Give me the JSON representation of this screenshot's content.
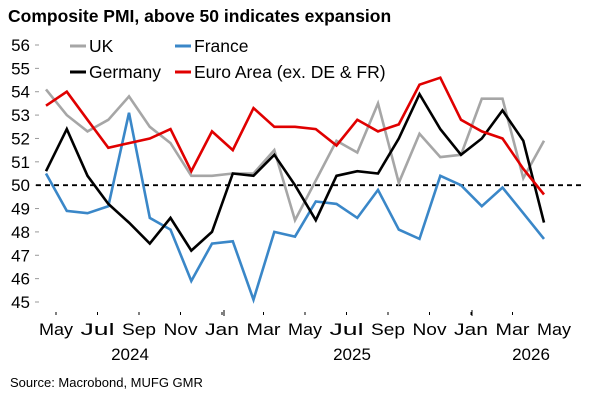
{
  "chart_data": {
    "type": "line",
    "title": "Composite PMI, above 50 indicates expansion",
    "source": "Source: Macrobond, MUFG GMR",
    "x": [
      "2024-05",
      "2024-06",
      "2024-07",
      "2024-08",
      "2024-09",
      "2024-10",
      "2024-11",
      "2024-12",
      "2025-01",
      "2025-02",
      "2025-03",
      "2025-04",
      "2025-05",
      "2025-06",
      "2025-07",
      "2025-08",
      "2025-09",
      "2025-10",
      "2025-11",
      "2025-12",
      "2026-01",
      "2026-02",
      "2026-03",
      "2026-04",
      "2026-05"
    ],
    "x_tick_labels": [
      "May",
      "Jul",
      "Sep",
      "Nov",
      "Jan",
      "Mar",
      "May",
      "Jul",
      "Sep",
      "Nov",
      "Jan",
      "Mar",
      "May"
    ],
    "year_labels": [
      "2024",
      "2025",
      "2026"
    ],
    "ylim": [
      45,
      56
    ],
    "y_ticks": [
      45,
      46,
      47,
      48,
      49,
      50,
      51,
      52,
      53,
      54,
      55,
      56
    ],
    "reference_line": {
      "y": 50,
      "style": "dashed",
      "color": "#000000"
    },
    "grid": false,
    "legend": "top-left",
    "series": [
      {
        "name": "UK",
        "color": "#a6a6a6",
        "values": [
          54.1,
          53.0,
          52.3,
          52.8,
          53.8,
          52.5,
          51.8,
          50.4,
          50.4,
          50.5,
          50.5,
          51.5,
          48.5,
          50.2,
          51.9,
          51.4,
          53.5,
          50.1,
          52.2,
          51.2,
          51.3,
          53.7,
          53.7,
          50.3,
          51.9
        ]
      },
      {
        "name": "France",
        "color": "#3a87c8",
        "values": [
          50.5,
          48.9,
          48.8,
          49.1,
          53.1,
          48.6,
          48.1,
          45.9,
          47.5,
          47.6,
          45.1,
          48.0,
          47.8,
          49.3,
          49.2,
          48.6,
          49.8,
          48.1,
          47.7,
          50.4,
          50.0,
          49.1,
          49.9,
          48.8,
          47.7
        ]
      },
      {
        "name": "Germany",
        "color": "#000000",
        "values": [
          50.6,
          52.4,
          50.4,
          49.2,
          48.4,
          47.5,
          48.6,
          47.2,
          48.0,
          50.5,
          50.4,
          51.3,
          50.0,
          48.5,
          50.4,
          50.6,
          50.5,
          52.0,
          53.9,
          52.4,
          51.3,
          52.0,
          53.2,
          51.9,
          48.4
        ]
      },
      {
        "name": "Euro Area (ex. DE & FR)",
        "color": "#e00000",
        "values": [
          53.4,
          54.0,
          52.8,
          51.6,
          51.8,
          52.0,
          52.4,
          50.6,
          52.3,
          51.5,
          53.3,
          52.5,
          52.5,
          52.4,
          51.7,
          52.8,
          52.3,
          52.6,
          54.3,
          54.6,
          52.8,
          52.3,
          52.0,
          50.7,
          49.6
        ]
      }
    ]
  }
}
